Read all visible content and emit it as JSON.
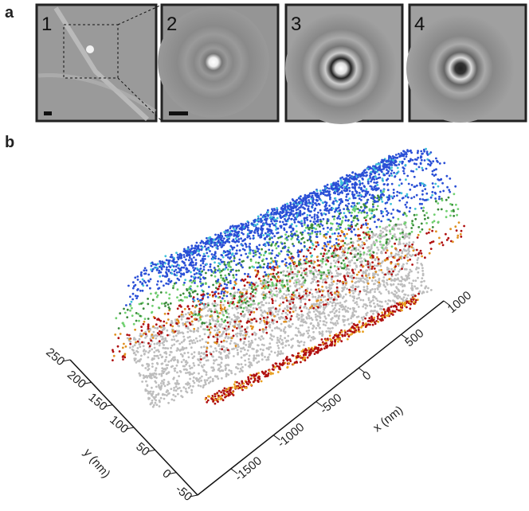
{
  "panel_a": {
    "label": "a",
    "images": [
      {
        "number": "1"
      },
      {
        "number": "2"
      },
      {
        "number": "3"
      },
      {
        "number": "4"
      }
    ]
  },
  "panel_b": {
    "label": "b",
    "y_axis": {
      "title": "y (nm)",
      "ticks": [
        "250",
        "200",
        "150",
        "100",
        "50",
        "0",
        "-50"
      ]
    },
    "x_axis": {
      "title": "x (nm)",
      "ticks": [
        "1000",
        "500",
        "0",
        "-500",
        "-1000",
        "-1500"
      ]
    }
  }
}
